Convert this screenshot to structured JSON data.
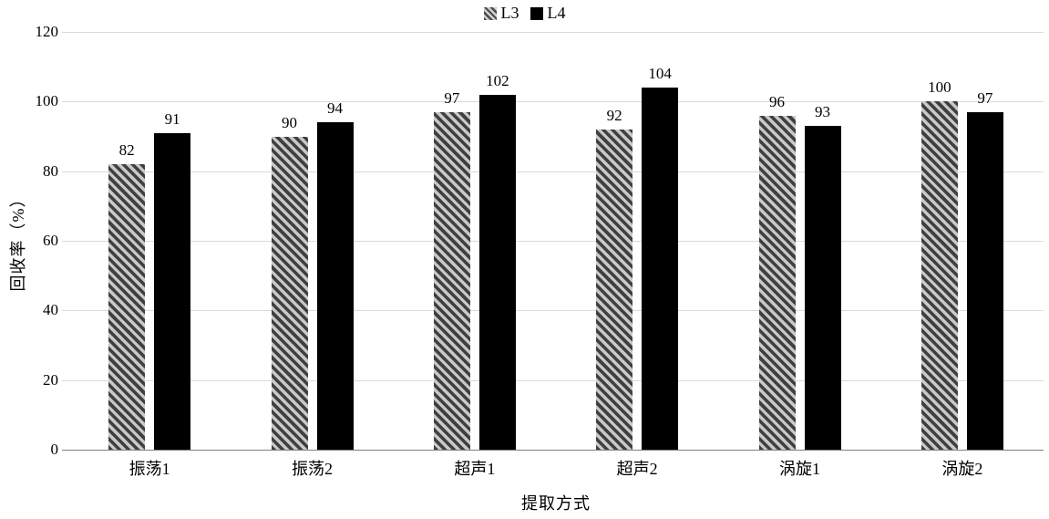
{
  "legend": {
    "items": [
      {
        "label": "L3",
        "swatch": "hatch"
      },
      {
        "label": "L4",
        "swatch": "solid"
      }
    ]
  },
  "chart_data": {
    "type": "bar",
    "categories": [
      "振荡1",
      "振荡2",
      "超声1",
      "超声2",
      "涡旋1",
      "涡旋2"
    ],
    "series": [
      {
        "name": "L3",
        "fill": "hatch",
        "values": [
          82,
          90,
          97,
          92,
          96,
          100
        ]
      },
      {
        "name": "L4",
        "fill": "solid",
        "values": [
          91,
          94,
          102,
          104,
          93,
          97
        ]
      }
    ],
    "title": "",
    "xlabel": "提取方式",
    "ylabel": "回收率（%）",
    "ylim": [
      0,
      120
    ],
    "yticks": [
      0,
      20,
      40,
      60,
      80,
      100,
      120
    ],
    "grid": true,
    "legend_position": "top-center",
    "data_labels": true
  },
  "colors": {
    "background": "#ffffff",
    "gridline": "#d9d9d9",
    "axis_line": "#7f7f7f",
    "bar_solid": "#000000",
    "hatch_stripe": "#404040",
    "hatch_bg": "#c9c9c9",
    "text": "#000000"
  }
}
